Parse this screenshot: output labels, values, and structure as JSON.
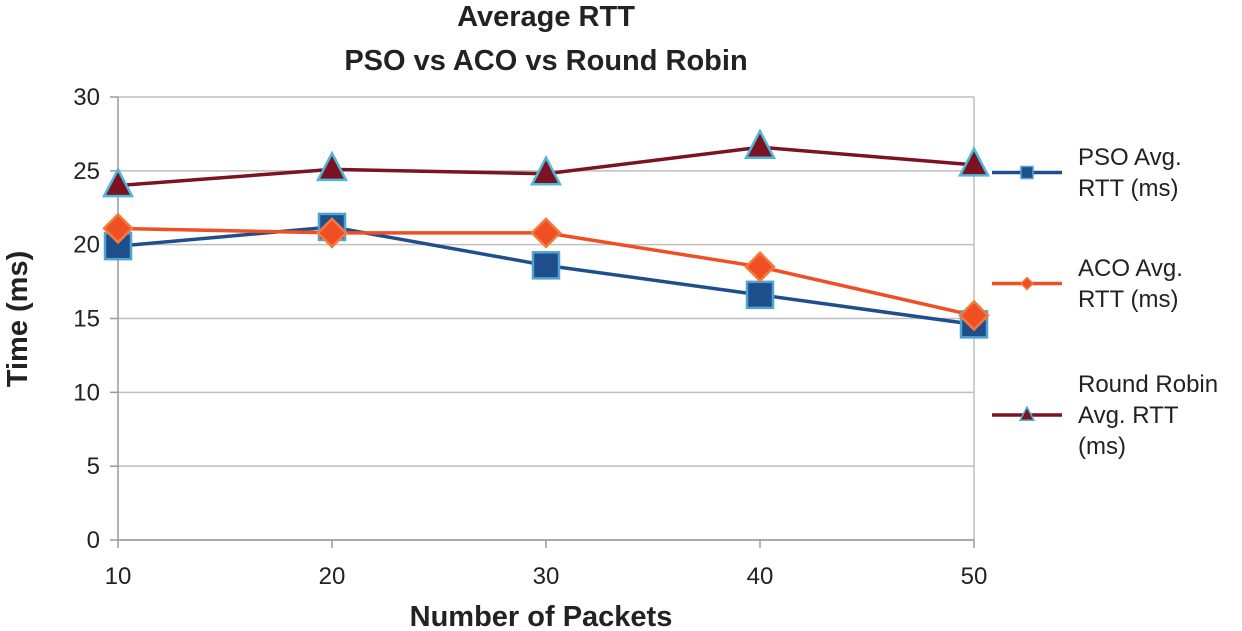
{
  "chart_data": {
    "type": "line",
    "title": [
      "Average RTT",
      "PSO vs ACO vs Round Robin"
    ],
    "xlabel": "Number of Packets",
    "ylabel": "Time (ms)",
    "x": [
      10,
      20,
      30,
      40,
      50
    ],
    "xticks": [
      "10",
      "20",
      "30",
      "40",
      "50"
    ],
    "ylim": [
      0,
      30
    ],
    "yticks": [
      "0",
      "5",
      "10",
      "15",
      "20",
      "25",
      "30"
    ],
    "grid": true,
    "legend_position": "right",
    "series": [
      {
        "name": [
          "PSO Avg.",
          "RTT (ms)"
        ],
        "values": [
          19.9,
          21.2,
          18.6,
          16.6,
          14.6
        ],
        "marker": "square",
        "line_color": "#1f4e8c",
        "marker_fill": "#1f4e8c",
        "marker_stroke": "#4fa3d1"
      },
      {
        "name": [
          "ACO Avg.",
          "RTT (ms)"
        ],
        "values": [
          21.1,
          20.8,
          20.8,
          18.5,
          15.2
        ],
        "marker": "diamond",
        "line_color": "#f04e23",
        "marker_fill": "#f04e23",
        "marker_stroke": "#f47a3c"
      },
      {
        "name": [
          "Round Robin",
          "Avg. RTT",
          "(ms)"
        ],
        "values": [
          24.0,
          25.1,
          24.8,
          26.6,
          25.4
        ],
        "marker": "triangle",
        "line_color": "#7b1322",
        "marker_fill": "#7b1322",
        "marker_stroke": "#4fb8d8"
      }
    ]
  }
}
